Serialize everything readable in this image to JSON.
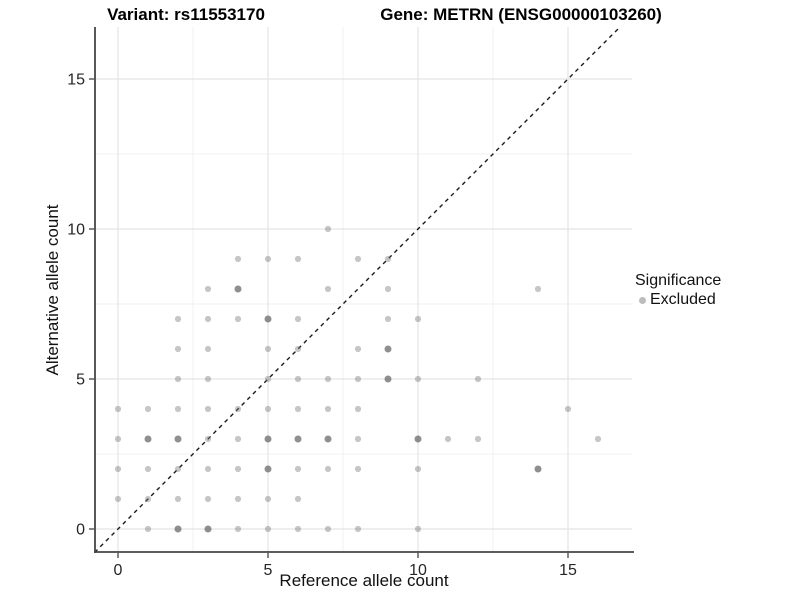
{
  "titles": {
    "variant": "Variant: rs11553170",
    "gene": "Gene: METRN (ENSG00000103260)"
  },
  "legend": {
    "title": "Significance",
    "items": [
      {
        "label": "Excluded",
        "color": "#bcbcbc"
      }
    ]
  },
  "colors": {
    "background": "#ffffff",
    "grid_major": "#e4e4e4",
    "grid_minor": "#f1f1f1",
    "axis_line": "#454545",
    "tick_mark": "#333333",
    "tick_label": "#262626",
    "identity_line": "#1a1a1a",
    "point_light": "rgba(120,120,120,0.42)",
    "point_dark": "rgba(100,100,100,0.72)"
  },
  "chart_data": {
    "type": "scatter",
    "title": "Variant: rs11553170   |   Gene: METRN (ENSG00000103260)",
    "xlabel": "Reference allele count",
    "ylabel": "Alternative allele count",
    "xlim": [
      -0.8,
      17.1
    ],
    "ylim": [
      -0.8,
      16.75
    ],
    "x_ticks": [
      0,
      5,
      10,
      15
    ],
    "y_ticks": [
      0,
      5,
      10,
      15
    ],
    "x_minor_gridlines": [
      2.5,
      7.5,
      12.5
    ],
    "y_minor_gridlines": [
      2.5,
      7.5,
      12.5
    ],
    "grid": "on",
    "legend_position": "right-outside",
    "identity_line": {
      "style": "dashed",
      "slope": 1,
      "intercept": 0,
      "from": -0.78,
      "to": 16.75
    },
    "series_name": "Excluded",
    "point_note": "each point = [reference_allele_count, alternative_allele_count, shade]; shade 1 = light, 2 = darker (overplotted)",
    "points": [
      [
        1,
        0,
        1
      ],
      [
        2,
        0,
        2
      ],
      [
        3,
        0,
        2
      ],
      [
        4,
        0,
        1
      ],
      [
        5,
        0,
        1
      ],
      [
        6,
        0,
        1
      ],
      [
        7,
        0,
        1
      ],
      [
        8,
        0,
        1
      ],
      [
        10,
        0,
        1
      ],
      [
        0,
        1,
        1
      ],
      [
        1,
        1,
        1
      ],
      [
        2,
        1,
        1
      ],
      [
        3,
        1,
        1
      ],
      [
        4,
        1,
        1
      ],
      [
        5,
        1,
        1
      ],
      [
        6,
        1,
        1
      ],
      [
        0,
        2,
        1
      ],
      [
        1,
        2,
        1
      ],
      [
        2,
        2,
        1
      ],
      [
        3,
        2,
        1
      ],
      [
        4,
        2,
        1
      ],
      [
        5,
        2,
        2
      ],
      [
        6,
        2,
        1
      ],
      [
        7,
        2,
        1
      ],
      [
        8,
        2,
        1
      ],
      [
        10,
        2,
        1
      ],
      [
        14,
        2,
        2
      ],
      [
        0,
        3,
        1
      ],
      [
        1,
        3,
        2
      ],
      [
        2,
        3,
        2
      ],
      [
        3,
        3,
        1
      ],
      [
        4,
        3,
        1
      ],
      [
        5,
        3,
        2
      ],
      [
        6,
        3,
        2
      ],
      [
        7,
        3,
        2
      ],
      [
        8,
        3,
        1
      ],
      [
        10,
        3,
        2
      ],
      [
        11,
        3,
        1
      ],
      [
        12,
        3,
        1
      ],
      [
        16,
        3,
        1
      ],
      [
        0,
        4,
        1
      ],
      [
        1,
        4,
        1
      ],
      [
        2,
        4,
        1
      ],
      [
        3,
        4,
        1
      ],
      [
        4,
        4,
        1
      ],
      [
        5,
        4,
        1
      ],
      [
        6,
        4,
        1
      ],
      [
        7,
        4,
        1
      ],
      [
        8,
        4,
        1
      ],
      [
        15,
        4,
        1
      ],
      [
        2,
        5,
        1
      ],
      [
        3,
        5,
        1
      ],
      [
        5,
        5,
        1
      ],
      [
        6,
        5,
        1
      ],
      [
        7,
        5,
        1
      ],
      [
        8,
        5,
        1
      ],
      [
        9,
        5,
        2
      ],
      [
        10,
        5,
        1
      ],
      [
        12,
        5,
        1
      ],
      [
        2,
        6,
        1
      ],
      [
        3,
        6,
        1
      ],
      [
        5,
        6,
        1
      ],
      [
        6,
        6,
        1
      ],
      [
        8,
        6,
        1
      ],
      [
        9,
        6,
        2
      ],
      [
        2,
        7,
        1
      ],
      [
        3,
        7,
        1
      ],
      [
        4,
        7,
        1
      ],
      [
        5,
        7,
        2
      ],
      [
        6,
        7,
        1
      ],
      [
        9,
        7,
        1
      ],
      [
        10,
        7,
        1
      ],
      [
        3,
        8,
        1
      ],
      [
        4,
        8,
        2
      ],
      [
        7,
        8,
        1
      ],
      [
        9,
        8,
        1
      ],
      [
        14,
        8,
        1
      ],
      [
        4,
        9,
        1
      ],
      [
        5,
        9,
        1
      ],
      [
        6,
        9,
        1
      ],
      [
        8,
        9,
        1
      ],
      [
        9,
        9,
        1
      ],
      [
        7,
        10,
        1
      ]
    ]
  }
}
